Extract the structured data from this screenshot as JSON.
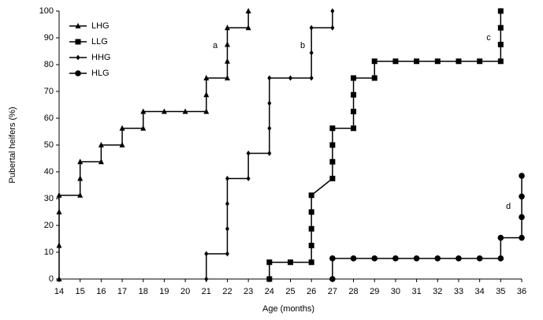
{
  "chart_data": {
    "type": "line",
    "x_label": "Age (months)",
    "y_label": "Pubertal heifers (%)",
    "xlim": [
      14,
      36
    ],
    "ylim": [
      0,
      100
    ],
    "xticks": [
      14,
      15,
      16,
      17,
      18,
      19,
      20,
      21,
      22,
      23,
      24,
      25,
      26,
      27,
      28,
      29,
      30,
      31,
      32,
      33,
      34,
      35,
      36
    ],
    "yticks": [
      0,
      10,
      20,
      30,
      40,
      50,
      60,
      70,
      80,
      90,
      100
    ],
    "legend": "top-left",
    "annotations": [
      "a",
      "b",
      "c",
      "d"
    ],
    "series": [
      {
        "name": "LHG",
        "color": "#000000",
        "marker": "triangle",
        "x": [
          14,
          14,
          14,
          14,
          15,
          15,
          15,
          16,
          16,
          17,
          17,
          18,
          18,
          19,
          20,
          21,
          21,
          21,
          22,
          22,
          22,
          22,
          23,
          23
        ],
        "values": [
          0,
          12.5,
          25,
          31.25,
          31.25,
          37.5,
          43.75,
          43.75,
          50,
          50,
          56.25,
          56.25,
          62.5,
          62.5,
          62.5,
          62.5,
          68.75,
          75,
          75,
          81.25,
          87.5,
          93.75,
          93.75,
          100
        ]
      },
      {
        "name": "LLG",
        "color": "#000000",
        "marker": "square",
        "x": [
          24,
          24,
          25,
          26,
          26,
          26,
          26,
          26,
          27,
          27,
          27,
          27,
          28,
          28,
          28,
          28,
          29,
          29,
          30,
          31,
          32,
          33,
          34,
          35,
          35,
          35,
          35
        ],
        "values": [
          0,
          6.25,
          6.25,
          6.25,
          12.5,
          18.75,
          25,
          31.25,
          37.5,
          43.75,
          50,
          56.25,
          56.25,
          62.5,
          68.75,
          75,
          75,
          81.25,
          81.25,
          81.25,
          81.25,
          81.25,
          81.25,
          81.25,
          87.5,
          93.75,
          100
        ]
      },
      {
        "name": "HHG",
        "color": "#000000",
        "marker": "diamond",
        "x": [
          21,
          21,
          22,
          22,
          22,
          22,
          23,
          23,
          24,
          24,
          24,
          24,
          25,
          26,
          26,
          26,
          27,
          27
        ],
        "values": [
          0,
          9.4,
          9.4,
          18.75,
          28.1,
          37.5,
          37.5,
          46.9,
          46.9,
          56.25,
          65.6,
          75,
          75,
          75,
          84.4,
          93.75,
          93.75,
          100
        ]
      },
      {
        "name": "HLG",
        "color": "#000000",
        "marker": "circle",
        "x": [
          27,
          27,
          28,
          29,
          30,
          31,
          32,
          33,
          34,
          35,
          35,
          36,
          36,
          36,
          36
        ],
        "values": [
          0,
          7.7,
          7.7,
          7.7,
          7.7,
          7.7,
          7.7,
          7.7,
          7.7,
          7.7,
          15.4,
          15.4,
          23.1,
          30.8,
          38.5
        ]
      }
    ]
  }
}
